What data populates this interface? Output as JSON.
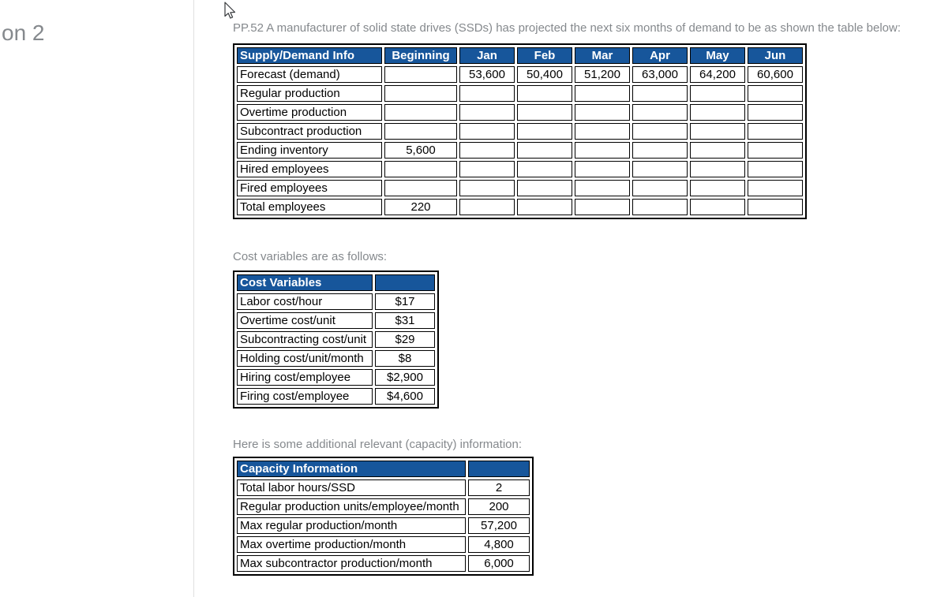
{
  "window": {
    "left_partial_text": "on 2"
  },
  "intro": {
    "problem_statement": "PP.52 A manufacturer of solid state drives (SSDs) has projected the next six months of demand to be as shown the table below:",
    "cost_intro": "Cost variables are as follows:",
    "capacity_intro": "Here is some additional relevant (capacity) information:"
  },
  "colors": {
    "table_header_bg": "#17569b",
    "table_header_text": "#ffffff",
    "body_text_gray": "#85898d",
    "table_border": "#000000",
    "divider": "#e0e0e0"
  },
  "supply_demand_table": {
    "columns": [
      "Supply/Demand Info",
      "Beginning",
      "Jan",
      "Feb",
      "Mar",
      "Apr",
      "May",
      "Jun"
    ],
    "rows": [
      {
        "label": "Forecast (demand)",
        "values": [
          "",
          "53,600",
          "50,400",
          "51,200",
          "63,000",
          "64,200",
          "60,600"
        ]
      },
      {
        "label": "Regular production",
        "values": [
          "",
          "",
          "",
          "",
          "",
          "",
          ""
        ]
      },
      {
        "label": "Overtime production",
        "values": [
          "",
          "",
          "",
          "",
          "",
          "",
          ""
        ]
      },
      {
        "label": "Subcontract production",
        "values": [
          "",
          "",
          "",
          "",
          "",
          "",
          ""
        ]
      },
      {
        "label": "Ending inventory",
        "values": [
          "5,600",
          "",
          "",
          "",
          "",
          "",
          ""
        ]
      },
      {
        "label": "Hired employees",
        "values": [
          "",
          "",
          "",
          "",
          "",
          "",
          ""
        ]
      },
      {
        "label": "Fired employees",
        "values": [
          "",
          "",
          "",
          "",
          "",
          "",
          ""
        ]
      },
      {
        "label": "Total employees",
        "values": [
          "220",
          "",
          "",
          "",
          "",
          "",
          ""
        ]
      }
    ]
  },
  "cost_table": {
    "title": "Cost Variables",
    "rows": [
      {
        "label": "Labor cost/hour",
        "value": "$17"
      },
      {
        "label": "Overtime cost/unit",
        "value": "$31"
      },
      {
        "label": "Subcontracting cost/unit",
        "value": "$29"
      },
      {
        "label": "Holding cost/unit/month",
        "value": "$8"
      },
      {
        "label": "Hiring cost/employee",
        "value": "$2,900"
      },
      {
        "label": "Firing cost/employee",
        "value": "$4,600"
      }
    ]
  },
  "capacity_table": {
    "title": "Capacity Information",
    "rows": [
      {
        "label": "Total labor hours/SSD",
        "value": "2"
      },
      {
        "label": "Regular production units/employee/month",
        "value": "200"
      },
      {
        "label": "Max regular production/month",
        "value": "57,200"
      },
      {
        "label": "Max overtime production/month",
        "value": "4,800"
      },
      {
        "label": "Max subcontractor production/month",
        "value": "6,000"
      }
    ]
  },
  "cursor": {
    "type": "arrow"
  }
}
